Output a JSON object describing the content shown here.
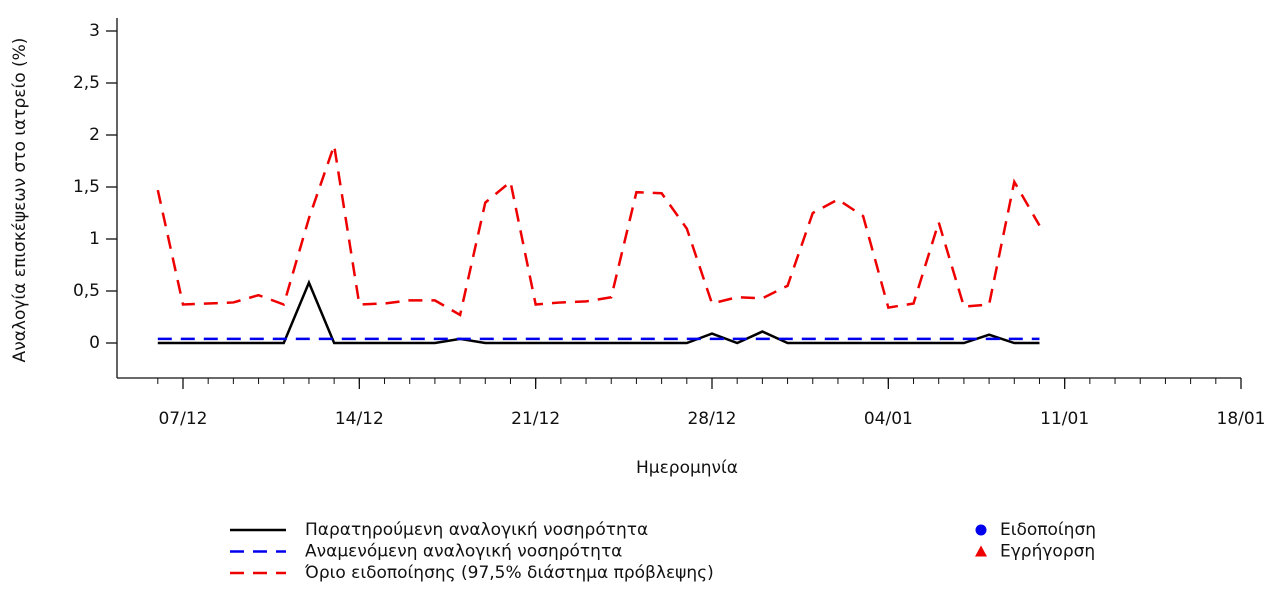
{
  "chart_data": {
    "type": "line",
    "xlabel": "Ημερομηνία",
    "ylabel": "Αναλογία επισκέψεων στο ιατρείο (%)",
    "x": [
      "06/12",
      "07/12",
      "08/12",
      "09/12",
      "10/12",
      "11/12",
      "12/12",
      "13/12",
      "14/12",
      "15/12",
      "16/12",
      "17/12",
      "18/12",
      "19/12",
      "20/12",
      "21/12",
      "22/12",
      "23/12",
      "24/12",
      "25/12",
      "26/12",
      "27/12",
      "28/12",
      "29/12",
      "30/12",
      "31/12",
      "01/01",
      "02/01",
      "03/01",
      "04/01",
      "05/01",
      "06/01",
      "07/01",
      "08/01",
      "09/01",
      "10/01"
    ],
    "series": [
      {
        "name": "Παρατηρούμενη αναλογική νοσηρότητα",
        "color": "#000000",
        "dash": false,
        "values": [
          0,
          0,
          0,
          0,
          0,
          0,
          0.58,
          0,
          0,
          0,
          0,
          0,
          0.04,
          0,
          0,
          0,
          0,
          0,
          0,
          0,
          0,
          0,
          0.09,
          0,
          0.11,
          0,
          0,
          0,
          0,
          0,
          0,
          0,
          0,
          0.08,
          0,
          0
        ]
      },
      {
        "name": "Αναμενόμενη αναλογική νοσηρότητα",
        "color": "#0000ee",
        "dash": true,
        "values": [
          0.04,
          0.04,
          0.04,
          0.04,
          0.04,
          0.04,
          0.04,
          0.04,
          0.04,
          0.04,
          0.04,
          0.04,
          0.04,
          0.04,
          0.04,
          0.04,
          0.04,
          0.04,
          0.04,
          0.04,
          0.04,
          0.04,
          0.04,
          0.04,
          0.04,
          0.04,
          0.04,
          0.04,
          0.04,
          0.04,
          0.04,
          0.04,
          0.04,
          0.04,
          0.04,
          0.04
        ]
      },
      {
        "name": "Όριο ειδοποίησης (97,5% διάστημα πρόβλεψης)",
        "color": "#ee0000",
        "dash": true,
        "values": [
          1.47,
          0.37,
          0.38,
          0.39,
          0.46,
          0.37,
          1.2,
          1.9,
          0.37,
          0.38,
          0.41,
          0.41,
          0.27,
          1.35,
          1.55,
          0.37,
          0.39,
          0.4,
          0.44,
          1.45,
          1.44,
          1.1,
          0.38,
          0.44,
          0.43,
          0.55,
          1.25,
          1.38,
          1.22,
          0.34,
          0.38,
          1.16,
          0.35,
          0.37,
          1.55,
          1.13
        ]
      }
    ],
    "markers": [
      {
        "name": "Ειδοποίηση",
        "color": "#0000ee",
        "shape": "circle"
      },
      {
        "name": "Εγρήγορση",
        "color": "#ee0000",
        "shape": "triangle"
      }
    ],
    "xlim": [
      "06/12",
      "18/01"
    ],
    "xticks": [
      "07/12",
      "14/12",
      "21/12",
      "28/12",
      "04/01",
      "11/01",
      "18/01"
    ],
    "ylim": [
      0,
      3
    ],
    "yticks": [
      0,
      {
        "value": 0.5,
        "label": "0,5"
      },
      1,
      {
        "value": 1.5,
        "label": "1,5"
      },
      2,
      {
        "value": 2.5,
        "label": "2,5"
      },
      3
    ]
  }
}
